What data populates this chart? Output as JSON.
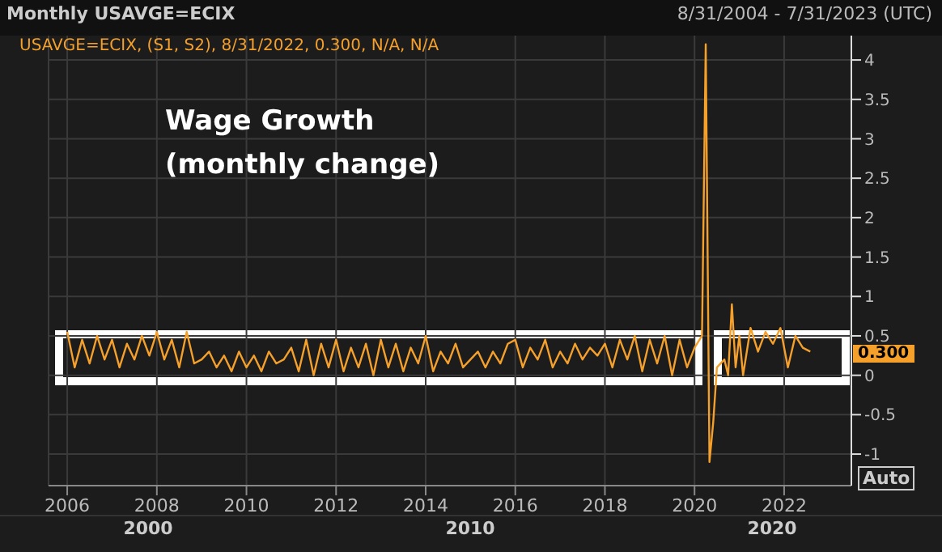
{
  "chart_data": {
    "type": "line",
    "title": "Monthly USAVGE=ECIX",
    "subtitle": "8/31/2004 - 7/31/2023 (UTC)",
    "annotations": [
      "USAVGE=ECIX, (S1, S2), 8/31/2022, 0.300, N/A, N/A",
      "Wage Growth (monthly change)",
      "0.300",
      "2000",
      "2010",
      "2020",
      "Auto"
    ],
    "x": [
      "2006-01",
      "2006-03",
      "2006-05",
      "2006-07",
      "2006-09",
      "2006-11",
      "2007-01",
      "2007-03",
      "2007-05",
      "2007-07",
      "2007-09",
      "2007-11",
      "2008-01",
      "2008-03",
      "2008-05",
      "2008-07",
      "2008-09",
      "2008-11",
      "2009-01",
      "2009-03",
      "2009-05",
      "2009-07",
      "2009-09",
      "2009-11",
      "2010-01",
      "2010-03",
      "2010-05",
      "2010-07",
      "2010-09",
      "2010-11",
      "2011-01",
      "2011-03",
      "2011-05",
      "2011-07",
      "2011-09",
      "2011-11",
      "2012-01",
      "2012-03",
      "2012-05",
      "2012-07",
      "2012-09",
      "2012-11",
      "2013-01",
      "2013-03",
      "2013-05",
      "2013-07",
      "2013-09",
      "2013-11",
      "2014-01",
      "2014-03",
      "2014-05",
      "2014-07",
      "2014-09",
      "2014-11",
      "2015-01",
      "2015-03",
      "2015-05",
      "2015-07",
      "2015-09",
      "2015-11",
      "2016-01",
      "2016-03",
      "2016-05",
      "2016-07",
      "2016-09",
      "2016-11",
      "2017-01",
      "2017-03",
      "2017-05",
      "2017-07",
      "2017-09",
      "2017-11",
      "2018-01",
      "2018-03",
      "2018-05",
      "2018-07",
      "2018-09",
      "2018-11",
      "2019-01",
      "2019-03",
      "2019-05",
      "2019-07",
      "2019-09",
      "2019-11",
      "2020-01",
      "2020-03",
      "2020-04",
      "2020-05",
      "2020-06",
      "2020-07",
      "2020-09",
      "2020-10",
      "2020-11",
      "2020-12",
      "2021-01",
      "2021-02",
      "2021-04",
      "2021-06",
      "2021-08",
      "2021-10",
      "2021-12",
      "2022-02",
      "2022-04",
      "2022-06",
      "2022-08"
    ],
    "series": [
      {
        "color": "#f5a02a",
        "values": [
          0.55,
          0.1,
          0.45,
          0.15,
          0.5,
          0.2,
          0.45,
          0.1,
          0.4,
          0.2,
          0.5,
          0.25,
          0.55,
          0.2,
          0.45,
          0.1,
          0.55,
          0.15,
          0.2,
          0.3,
          0.1,
          0.25,
          0.05,
          0.3,
          0.1,
          0.25,
          0.05,
          0.3,
          0.15,
          0.2,
          0.35,
          0.05,
          0.45,
          0.0,
          0.4,
          0.1,
          0.45,
          0.05,
          0.35,
          0.1,
          0.4,
          0.0,
          0.45,
          0.1,
          0.4,
          0.05,
          0.35,
          0.15,
          0.5,
          0.05,
          0.3,
          0.15,
          0.4,
          0.1,
          0.2,
          0.3,
          0.1,
          0.3,
          0.15,
          0.4,
          0.45,
          0.1,
          0.35,
          0.2,
          0.45,
          0.1,
          0.3,
          0.15,
          0.4,
          0.2,
          0.35,
          0.25,
          0.4,
          0.1,
          0.45,
          0.2,
          0.5,
          0.05,
          0.45,
          0.15,
          0.5,
          0.0,
          0.45,
          0.1,
          0.35,
          0.5,
          4.2,
          -1.1,
          -0.6,
          0.1,
          0.2,
          0.0,
          0.9,
          0.1,
          0.5,
          0.0,
          0.6,
          0.3,
          0.55,
          0.4,
          0.6,
          0.1,
          0.5,
          0.35,
          0.3
        ]
      }
    ],
    "xlim": [
      "2005-08",
      "2023-07"
    ],
    "xticks": [
      "2006",
      "2008",
      "2010",
      "2012",
      "2014",
      "2016",
      "2018",
      "2020",
      "2022"
    ],
    "ylim": [
      -1.4,
      4.35
    ],
    "yticks": [
      -1,
      -0.5,
      0,
      0.5,
      1,
      1.5,
      2,
      2.5,
      3,
      3.5,
      4
    ],
    "grid": true,
    "legend": false,
    "marker": "none",
    "line_style": "solid"
  }
}
